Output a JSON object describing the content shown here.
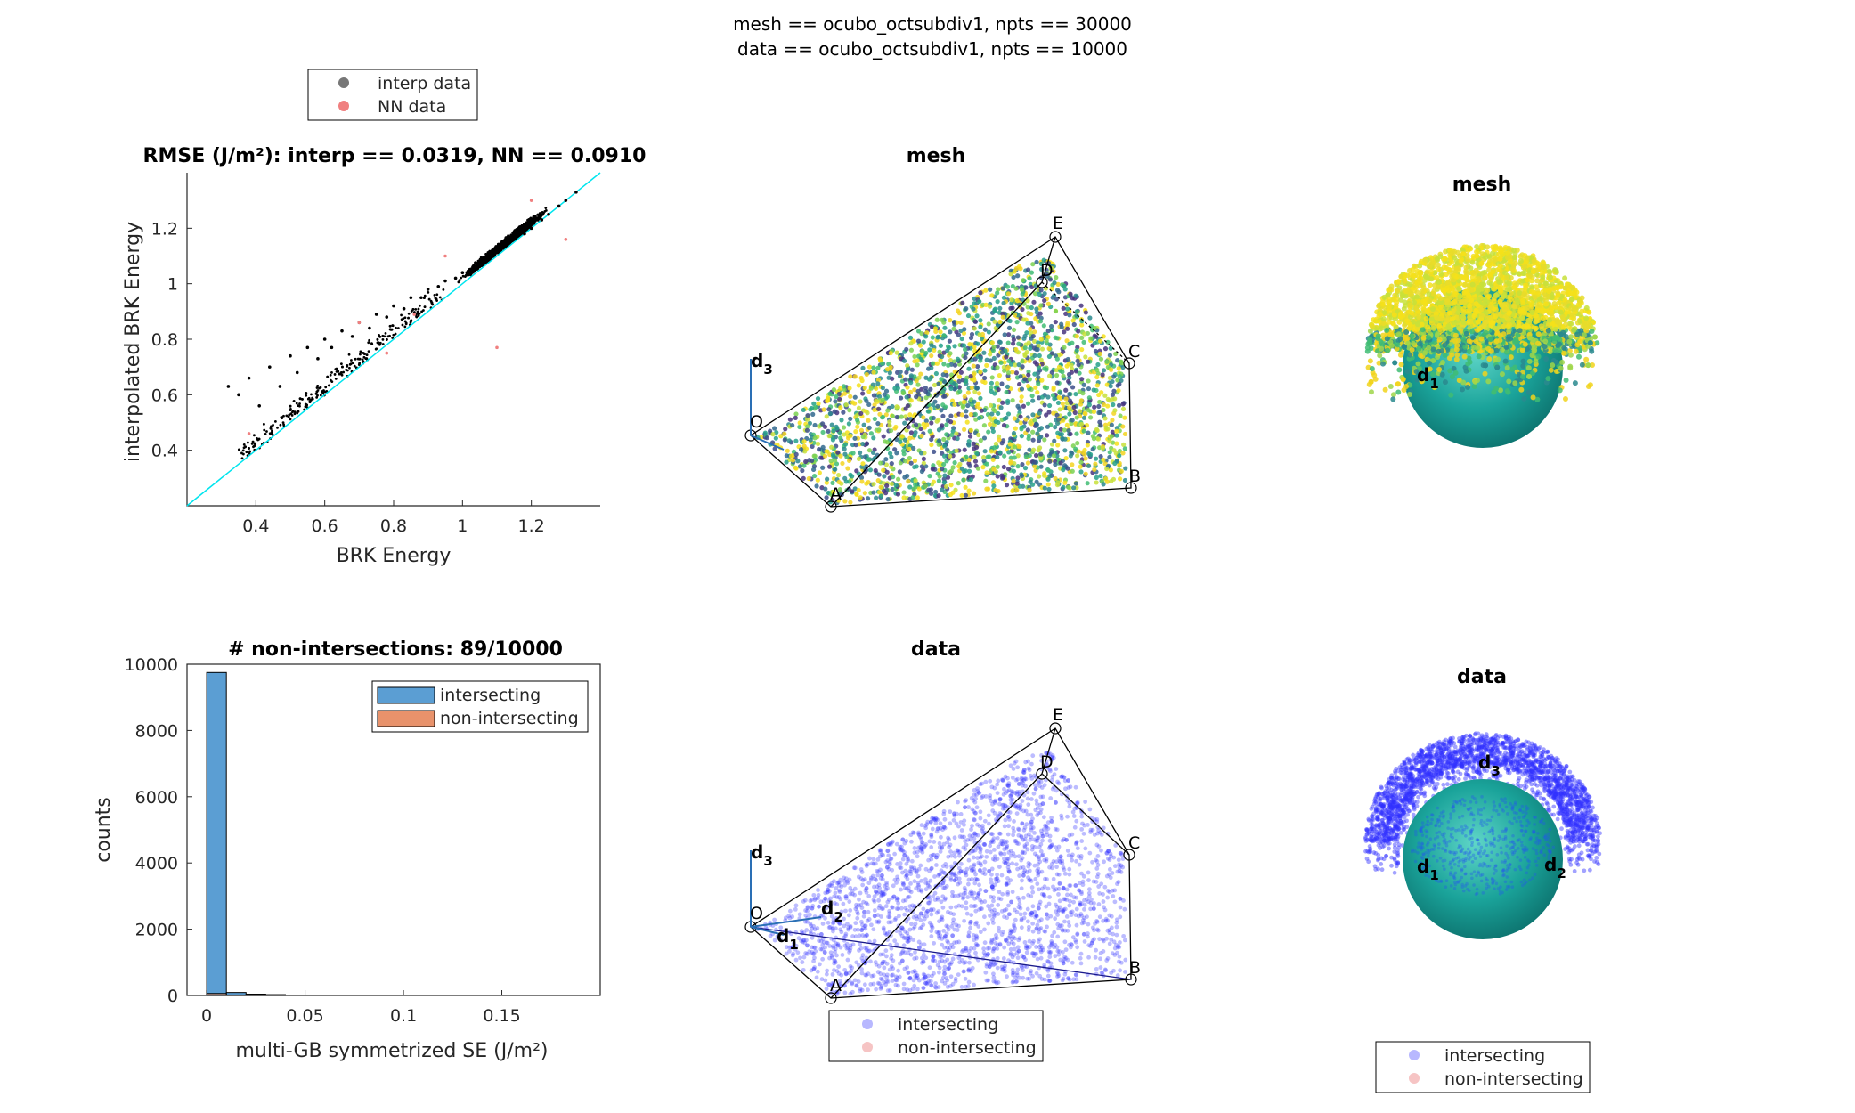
{
  "figure": {
    "title_line1": "mesh == ocubo_octsubdiv1, npts == 30000",
    "title_line2": "data == ocubo_octsubdiv1, npts == 10000"
  },
  "chart_data": [
    {
      "type": "scatter",
      "title": "RMSE (J/m²): interp == 0.0319, NN == 0.0910",
      "xlabel": "BRK Energy",
      "ylabel": "interpolated BRK Energy",
      "xlim": [
        0.2,
        1.4
      ],
      "ylim": [
        0.2,
        1.4
      ],
      "xticks": [
        0.4,
        0.6,
        0.8,
        1,
        1.2
      ],
      "xtick_labels": [
        "0.4",
        "0.6",
        "0.8",
        "1",
        "1.2"
      ],
      "yticks": [
        0.4,
        0.6,
        0.8,
        1,
        1.2
      ],
      "ytick_labels": [
        "0.4",
        "0.6",
        "0.8",
        "1",
        "1.2"
      ],
      "legend": {
        "placement": "above-left",
        "entries": [
          "interp data",
          "NN data"
        ]
      },
      "series": [
        {
          "name": "interp data",
          "color": "#000000",
          "points": [
            [
              0.32,
              0.63
            ],
            [
              0.35,
              0.6
            ],
            [
              0.38,
              0.66
            ],
            [
              0.41,
              0.56
            ],
            [
              0.44,
              0.7
            ],
            [
              0.47,
              0.63
            ],
            [
              0.5,
              0.74
            ],
            [
              0.52,
              0.68
            ],
            [
              0.55,
              0.77
            ],
            [
              0.58,
              0.73
            ],
            [
              0.6,
              0.8
            ],
            [
              0.62,
              0.77
            ],
            [
              0.65,
              0.83
            ],
            [
              0.68,
              0.81
            ],
            [
              0.7,
              0.86
            ],
            [
              0.73,
              0.84
            ],
            [
              0.75,
              0.89
            ],
            [
              0.78,
              0.88
            ],
            [
              0.8,
              0.92
            ],
            [
              0.83,
              0.91
            ],
            [
              0.85,
              0.95
            ],
            [
              0.88,
              0.95
            ],
            [
              0.9,
              0.98
            ],
            [
              0.93,
              0.99
            ],
            [
              0.95,
              1.01
            ],
            [
              0.98,
              1.02
            ],
            [
              1.0,
              1.04
            ],
            [
              1.03,
              1.06
            ],
            [
              1.05,
              1.08
            ],
            [
              1.08,
              1.1
            ],
            [
              1.1,
              1.12
            ],
            [
              1.13,
              1.14
            ],
            [
              1.15,
              1.16
            ],
            [
              1.18,
              1.18
            ],
            [
              1.2,
              1.2
            ],
            [
              1.23,
              1.23
            ],
            [
              1.25,
              1.25
            ],
            [
              1.28,
              1.28
            ],
            [
              1.3,
              1.3
            ],
            [
              1.33,
              1.33
            ]
          ]
        },
        {
          "name": "NN data",
          "color": "#f08080",
          "points": [
            [
              0.38,
              0.46
            ],
            [
              0.7,
              0.86
            ],
            [
              0.78,
              0.75
            ],
            [
              0.86,
              0.89
            ],
            [
              0.95,
              1.1
            ],
            [
              1.1,
              0.77
            ],
            [
              1.2,
              1.3
            ],
            [
              1.3,
              1.16
            ]
          ]
        }
      ],
      "reference_line": {
        "name": "",
        "color": "#00e5ee",
        "points": [
          [
            0.2,
            0.2
          ],
          [
            1.4,
            1.4
          ]
        ]
      }
    },
    {
      "type": "bar",
      "title": "# non-intersections: 89/10000",
      "xlabel": "multi-GB symmetrized SE (J/m²)",
      "ylabel": "counts",
      "xlim": [
        -0.01,
        0.2
      ],
      "ylim": [
        0,
        10000
      ],
      "xticks": [
        0,
        0.05,
        0.1,
        0.15
      ],
      "xtick_labels": [
        "0",
        "0.05",
        "0.1",
        "0.15"
      ],
      "yticks": [
        0,
        2000,
        4000,
        6000,
        8000,
        10000
      ],
      "ytick_labels": [
        "0",
        "2000",
        "4000",
        "6000",
        "8000",
        "10000"
      ],
      "bin_edges": [
        0,
        0.01,
        0.02,
        0.03,
        0.04
      ],
      "legend": {
        "placement": "top-right",
        "entries": [
          "intersecting",
          "non-intersecting"
        ]
      },
      "series": [
        {
          "name": "intersecting",
          "color": "#5b9ed3",
          "values": [
            9750,
            90,
            40,
            25
          ]
        },
        {
          "name": "non-intersecting",
          "color": "#e8926b",
          "values": [
            60,
            15,
            10,
            4
          ]
        }
      ]
    }
  ],
  "fz_plots": {
    "mesh_title": "mesh",
    "data_title": "data",
    "vertex_labels": [
      "O",
      "A",
      "B",
      "C",
      "D",
      "E"
    ],
    "axis_labels": {
      "d1": "d",
      "d1_sub": "1",
      "d2": "d",
      "d2_sub": "2",
      "d3": "d",
      "d3_sub": "3"
    },
    "legend": [
      "intersecting",
      "non-intersecting"
    ],
    "intersecting_color": "#3030ff",
    "nonintersecting_color": "#f4a3a3"
  }
}
